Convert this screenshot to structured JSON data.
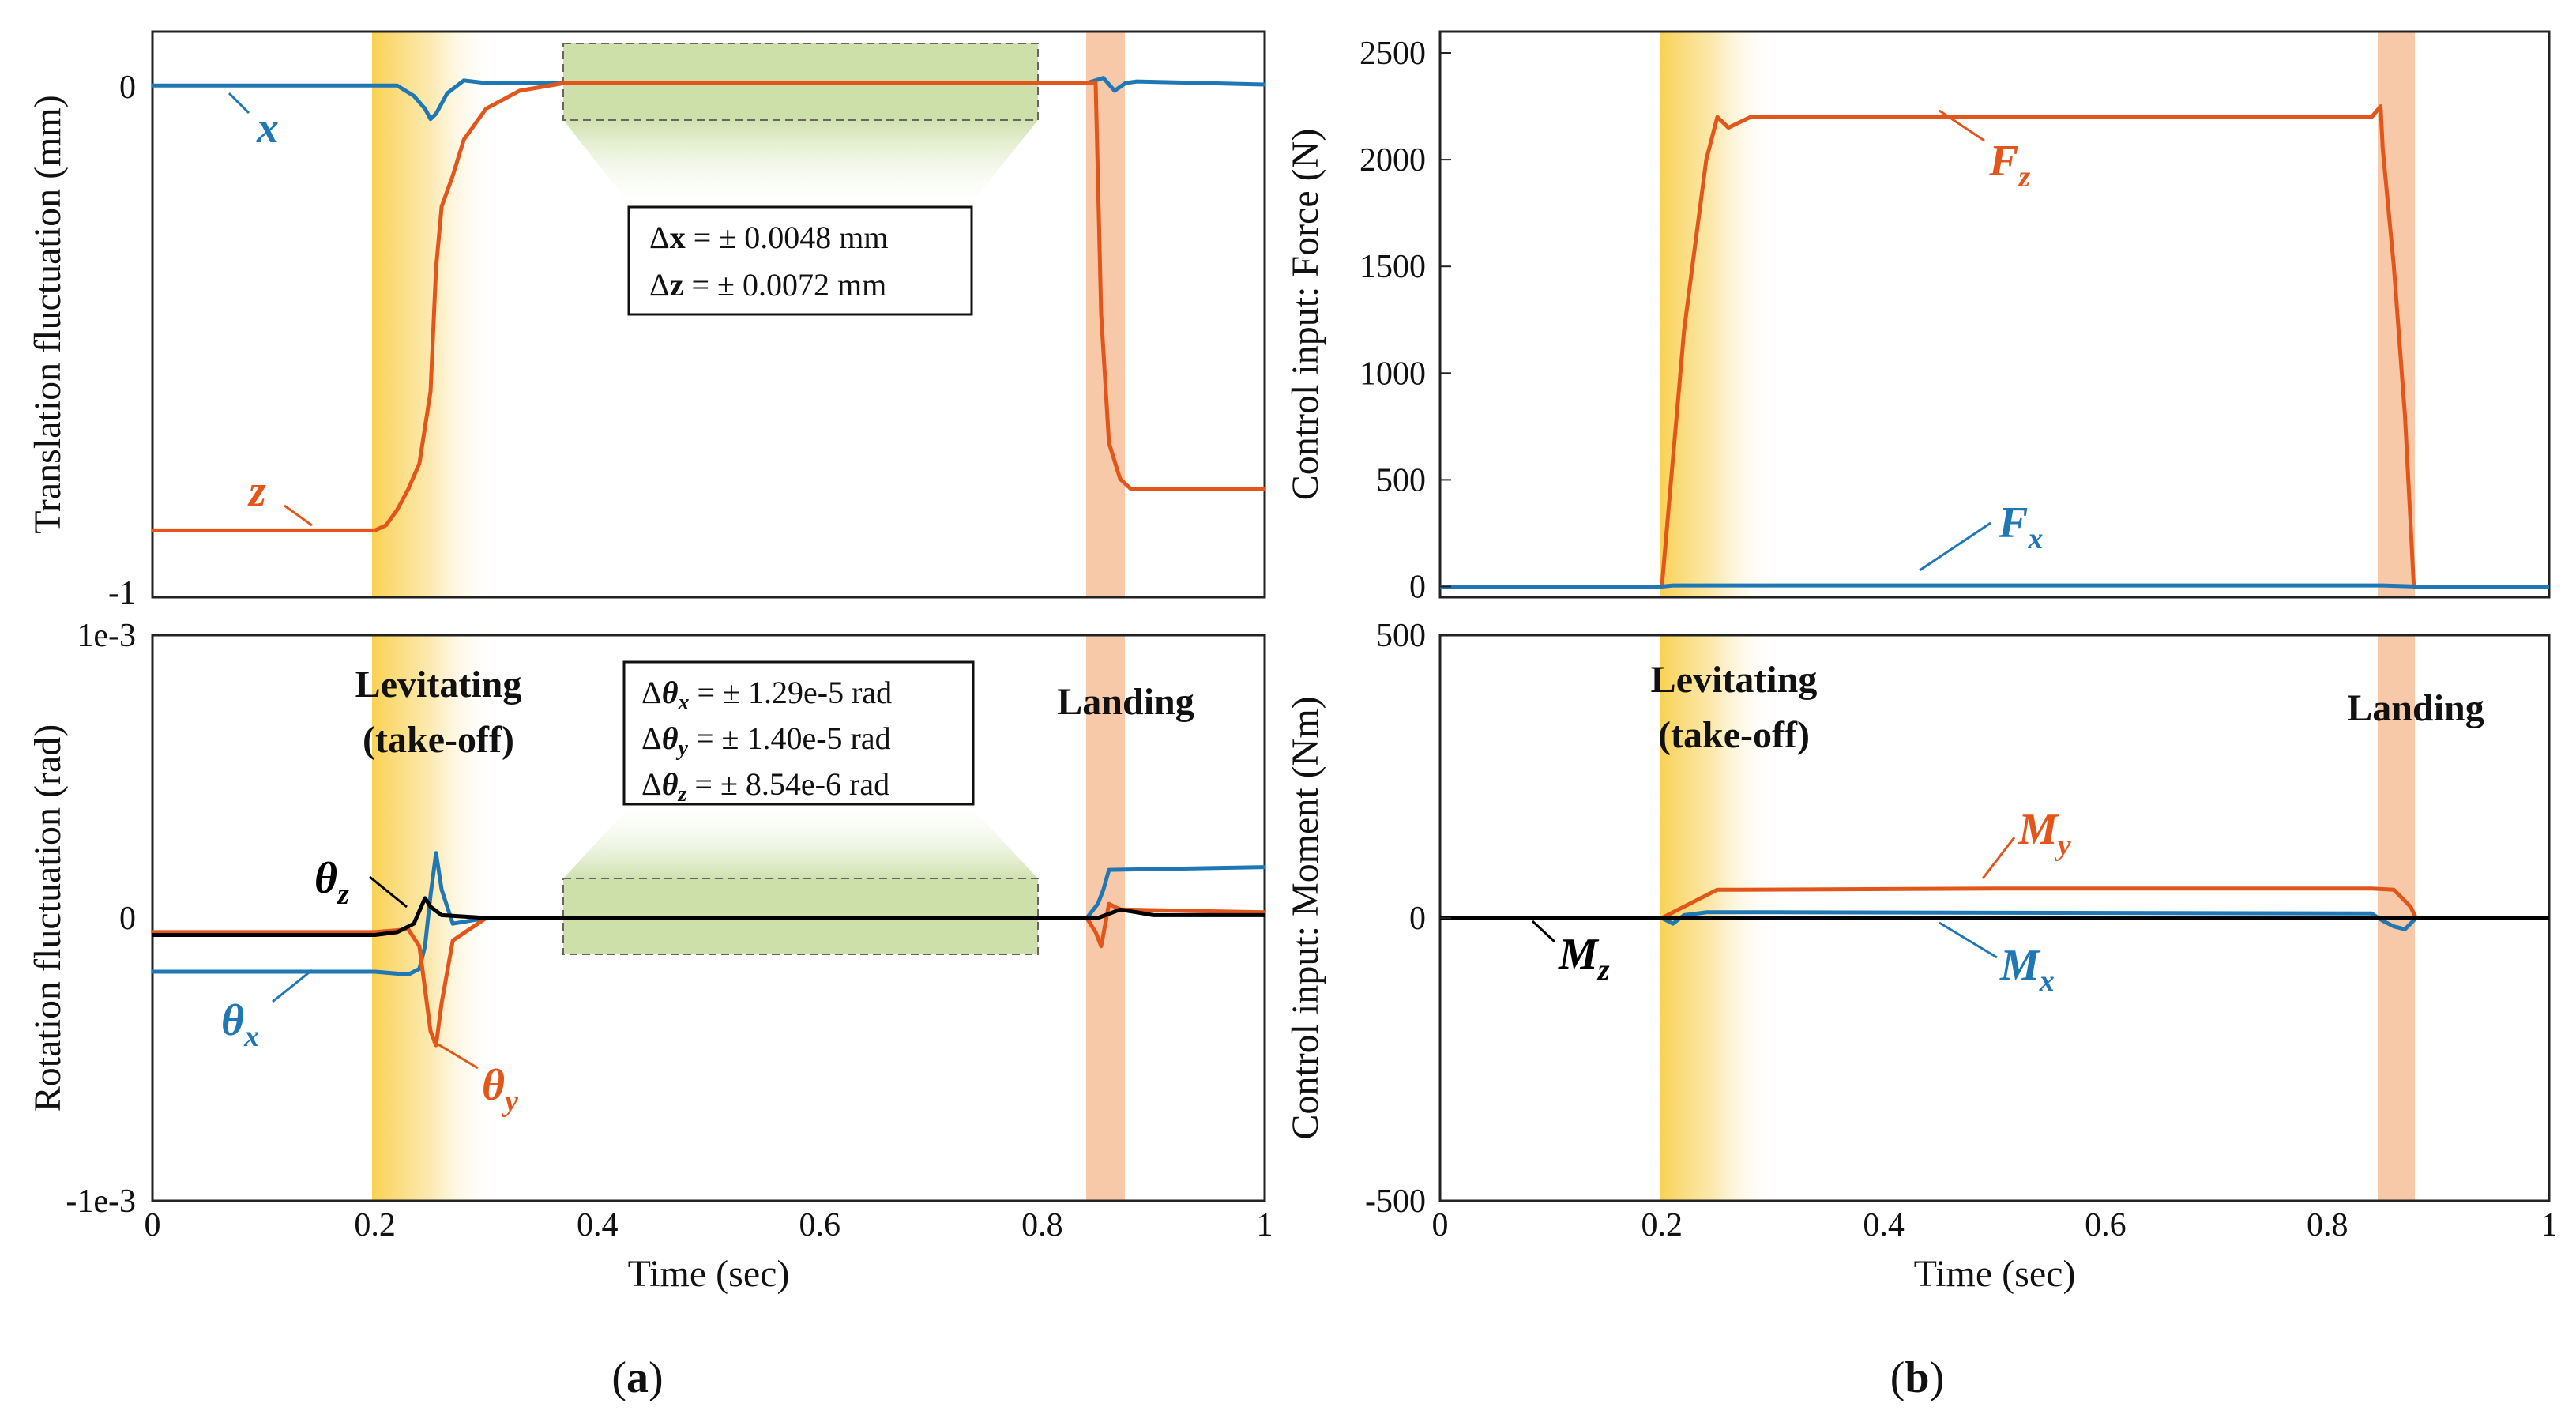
{
  "colors": {
    "blue": "#1f77b4",
    "orange": "#e2561b",
    "black": "#000000",
    "takeoff": "#f9cf4a",
    "landing": "#f8c9a8",
    "zoom": "#bcd58c"
  },
  "chart_data": [
    {
      "id": "a-top",
      "type": "line",
      "xlim": [
        0,
        1
      ],
      "ylim": [
        -1,
        0.1
      ],
      "ylabel": "Translation fluctuation (mm)",
      "yticks": [
        {
          "v": 0,
          "label": "0"
        },
        {
          "v": -1,
          "label": "-1"
        }
      ],
      "xticks": [],
      "series": [
        {
          "name": "x",
          "color": "blue",
          "label_x": 0.11,
          "label_y": -0.09,
          "points": [
            [
              0,
              -0.005
            ],
            [
              0.2,
              -0.005
            ],
            [
              0.22,
              -0.005
            ],
            [
              0.235,
              -0.025
            ],
            [
              0.245,
              -0.05
            ],
            [
              0.25,
              -0.07
            ],
            [
              0.255,
              -0.06
            ],
            [
              0.265,
              -0.02
            ],
            [
              0.28,
              0.005
            ],
            [
              0.3,
              0
            ],
            [
              0.84,
              0
            ],
            [
              0.855,
              0.01
            ],
            [
              0.865,
              -0.015
            ],
            [
              0.875,
              0
            ],
            [
              0.885,
              0.003
            ],
            [
              1,
              -0.003
            ]
          ]
        },
        {
          "name": "z",
          "color": "orange",
          "label_x": 0.1,
          "label_y": -0.81,
          "points": [
            [
              0,
              -0.87
            ],
            [
              0.2,
              -0.87
            ],
            [
              0.21,
              -0.86
            ],
            [
              0.22,
              -0.83
            ],
            [
              0.23,
              -0.79
            ],
            [
              0.24,
              -0.74
            ],
            [
              0.25,
              -0.6
            ],
            [
              0.255,
              -0.36
            ],
            [
              0.26,
              -0.24
            ],
            [
              0.27,
              -0.18
            ],
            [
              0.28,
              -0.11
            ],
            [
              0.3,
              -0.05
            ],
            [
              0.33,
              -0.015
            ],
            [
              0.37,
              0
            ],
            [
              0.848,
              0
            ],
            [
              0.853,
              -0.45
            ],
            [
              0.86,
              -0.7
            ],
            [
              0.87,
              -0.77
            ],
            [
              0.88,
              -0.79
            ],
            [
              1,
              -0.79
            ]
          ]
        }
      ],
      "zoom_box": {
        "x0": 0.37,
        "x1": 0.8,
        "y0": -0.08,
        "y1": 0.08
      },
      "stats_lines": [
        {
          "prefix": "Δ",
          "var": "x",
          "sub": "",
          "value": " = ± 0.0048 mm"
        },
        {
          "prefix": "Δ",
          "var": "z",
          "sub": "",
          "value": " = ± 0.0072 mm"
        }
      ]
    },
    {
      "id": "a-bottom",
      "type": "line",
      "xlim": [
        0,
        1
      ],
      "ylim": [
        -0.001,
        0.001
      ],
      "ylabel": "Rotation fluctuation (rad)",
      "xlabel": "Time (sec)",
      "yticks": [
        {
          "v": 0.001,
          "label": "1e-3"
        },
        {
          "v": 0,
          "label": "0"
        },
        {
          "v": -0.001,
          "label": "-1e-3"
        }
      ],
      "xticks": [
        {
          "v": 0,
          "label": "0"
        },
        {
          "v": 0.2,
          "label": "0.2"
        },
        {
          "v": 0.4,
          "label": "0.4"
        },
        {
          "v": 0.6,
          "label": "0.6"
        },
        {
          "v": 0.8,
          "label": "0.8"
        },
        {
          "v": 1,
          "label": "1"
        }
      ],
      "series": [
        {
          "name": "θ",
          "sub": "x",
          "color": "blue",
          "points": [
            [
              0,
              -0.00019
            ],
            [
              0.2,
              -0.00019
            ],
            [
              0.23,
              -0.0002
            ],
            [
              0.24,
              -0.00018
            ],
            [
              0.245,
              -0.0001
            ],
            [
              0.25,
              8e-05
            ],
            [
              0.255,
              0.00023
            ],
            [
              0.26,
              0.0001
            ],
            [
              0.27,
              -2e-05
            ],
            [
              0.3,
              0
            ],
            [
              0.84,
              0
            ],
            [
              0.85,
              5e-05
            ],
            [
              0.855,
              0.0001
            ],
            [
              0.86,
              0.00017
            ],
            [
              1,
              0.00018
            ]
          ]
        },
        {
          "name": "θ",
          "sub": "y",
          "color": "orange",
          "points": [
            [
              0,
              -5e-05
            ],
            [
              0.2,
              -5e-05
            ],
            [
              0.23,
              -4e-05
            ],
            [
              0.24,
              -0.0001
            ],
            [
              0.25,
              -0.0004
            ],
            [
              0.255,
              -0.00045
            ],
            [
              0.26,
              -0.0003
            ],
            [
              0.27,
              -8e-05
            ],
            [
              0.3,
              0
            ],
            [
              0.84,
              0
            ],
            [
              0.848,
              -5e-05
            ],
            [
              0.853,
              -0.0001
            ],
            [
              0.86,
              5e-05
            ],
            [
              0.87,
              3e-05
            ],
            [
              1,
              2e-05
            ]
          ]
        },
        {
          "name": "θ",
          "sub": "z",
          "color": "black",
          "points": [
            [
              0,
              -6e-05
            ],
            [
              0.2,
              -6e-05
            ],
            [
              0.22,
              -5e-05
            ],
            [
              0.235,
              -2e-05
            ],
            [
              0.245,
              7e-05
            ],
            [
              0.25,
              4e-05
            ],
            [
              0.26,
              1e-05
            ],
            [
              0.3,
              0
            ],
            [
              0.85,
              0
            ],
            [
              0.87,
              3e-05
            ],
            [
              0.9,
              1e-05
            ],
            [
              1,
              1e-05
            ]
          ]
        }
      ],
      "zoom_box": {
        "x0": 0.37,
        "x1": 0.8,
        "y0": -0.00015,
        "y1": 0.00015
      },
      "stats_lines": [
        {
          "prefix": "Δ",
          "var": "θ",
          "sub": "x",
          "value": " = ± 1.29e-5 rad"
        },
        {
          "prefix": "Δ",
          "var": "θ",
          "sub": "y",
          "value": " = ± 1.40e-5 rad"
        },
        {
          "prefix": "Δ",
          "var": "θ",
          "sub": "z",
          "value": " = ± 8.54e-6 rad"
        }
      ],
      "annotations": [
        "Levitating",
        "(take-off)",
        "Landing"
      ]
    },
    {
      "id": "b-top",
      "type": "line",
      "xlim": [
        0,
        1
      ],
      "ylim": [
        -50,
        2600
      ],
      "ylabel": "Control input: Force (N)",
      "yticks": [
        {
          "v": 0,
          "label": "0"
        },
        {
          "v": 500,
          "label": "500"
        },
        {
          "v": 1000,
          "label": "1000"
        },
        {
          "v": 1500,
          "label": "1500"
        },
        {
          "v": 2000,
          "label": "2000"
        },
        {
          "v": 2500,
          "label": "2500"
        }
      ],
      "xticks": [],
      "series": [
        {
          "name": "F",
          "sub": "z",
          "color": "orange",
          "points": [
            [
              0,
              0
            ],
            [
              0.2,
              0
            ],
            [
              0.205,
              300
            ],
            [
              0.21,
              600
            ],
            [
              0.215,
              900
            ],
            [
              0.22,
              1200
            ],
            [
              0.23,
              1600
            ],
            [
              0.24,
              2000
            ],
            [
              0.25,
              2200
            ],
            [
              0.26,
              2150
            ],
            [
              0.28,
              2200
            ],
            [
              0.5,
              2200
            ],
            [
              0.84,
              2200
            ],
            [
              0.848,
              2250
            ],
            [
              0.85,
              2050
            ],
            [
              0.86,
              1500
            ],
            [
              0.87,
              800
            ],
            [
              0.875,
              300
            ],
            [
              0.878,
              0
            ],
            [
              1,
              0
            ]
          ]
        },
        {
          "name": "F",
          "sub": "x",
          "color": "blue",
          "points": [
            [
              0,
              0
            ],
            [
              0.2,
              0
            ],
            [
              0.21,
              5
            ],
            [
              0.25,
              5
            ],
            [
              0.85,
              5
            ],
            [
              0.88,
              0
            ],
            [
              1,
              0
            ]
          ]
        }
      ]
    },
    {
      "id": "b-bottom",
      "type": "line",
      "xlim": [
        0,
        1
      ],
      "ylim": [
        -500,
        500
      ],
      "ylabel": "Control input: Moment (Nm)",
      "xlabel": "Time (sec)",
      "yticks": [
        {
          "v": 500,
          "label": "500"
        },
        {
          "v": 0,
          "label": "0"
        },
        {
          "v": -500,
          "label": "-500"
        }
      ],
      "xticks": [
        {
          "v": 0,
          "label": "0"
        },
        {
          "v": 0.2,
          "label": "0.2"
        },
        {
          "v": 0.4,
          "label": "0.4"
        },
        {
          "v": 0.6,
          "label": "0.6"
        },
        {
          "v": 0.8,
          "label": "0.8"
        },
        {
          "v": 1,
          "label": "1"
        }
      ],
      "series": [
        {
          "name": "M",
          "sub": "y",
          "color": "orange",
          "points": [
            [
              0,
              0
            ],
            [
              0.2,
              0
            ],
            [
              0.21,
              10
            ],
            [
              0.23,
              30
            ],
            [
              0.25,
              50
            ],
            [
              0.27,
              50
            ],
            [
              0.5,
              52
            ],
            [
              0.84,
              52
            ],
            [
              0.86,
              50
            ],
            [
              0.875,
              20
            ],
            [
              0.88,
              0
            ],
            [
              1,
              0
            ]
          ]
        },
        {
          "name": "M",
          "sub": "x",
          "color": "blue",
          "points": [
            [
              0,
              0
            ],
            [
              0.2,
              0
            ],
            [
              0.21,
              -10
            ],
            [
              0.22,
              5
            ],
            [
              0.24,
              10
            ],
            [
              0.3,
              10
            ],
            [
              0.84,
              8
            ],
            [
              0.85,
              -5
            ],
            [
              0.86,
              -15
            ],
            [
              0.87,
              -20
            ],
            [
              0.88,
              0
            ],
            [
              1,
              0
            ]
          ]
        },
        {
          "name": "M",
          "sub": "z",
          "color": "black",
          "points": [
            [
              0,
              0
            ],
            [
              1,
              0
            ]
          ]
        }
      ],
      "annotations": [
        "Levitating",
        "(take-off)",
        "Landing"
      ]
    }
  ],
  "panels": [
    "a",
    "b"
  ],
  "phases": {
    "takeoff": [
      0.2,
      0.31
    ],
    "landing": [
      0.845,
      0.88
    ]
  }
}
